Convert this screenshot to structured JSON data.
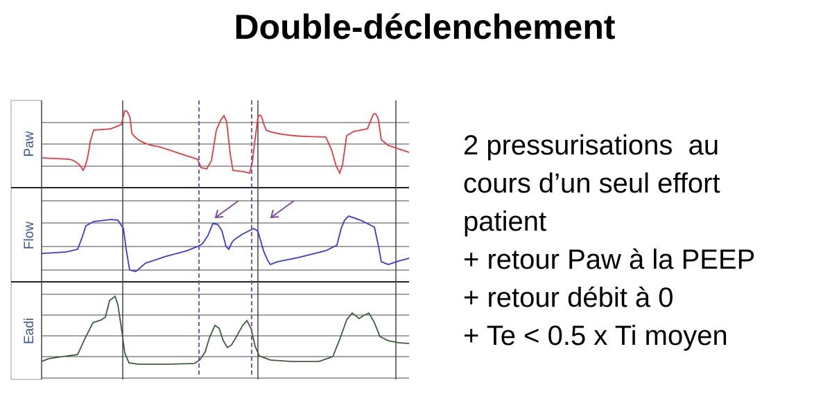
{
  "title": "Double-déclenchement",
  "panels": [
    {
      "label": "Paw",
      "color": "#e8383d"
    },
    {
      "label": "Flow",
      "color": "#3838e0"
    },
    {
      "label": "Eadi",
      "color": "#3a5e3a"
    }
  ],
  "arrow_color": "#7a4aa6",
  "marker_color": "#7a3fa0",
  "bullets": [
    "2 pressurisations  au",
    "cours d’un seul effort",
    "patient",
    "+ retour Paw à la PEEP",
    "+ retour débit à 0",
    "+ Te < 0.5 x Ti moyen"
  ]
}
